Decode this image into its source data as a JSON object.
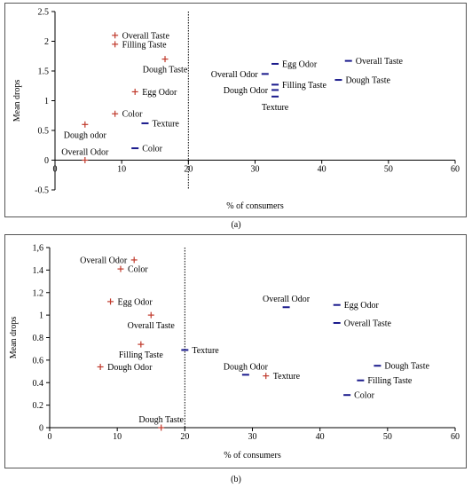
{
  "figure_labels": {
    "a": "(a)",
    "b": "(b)"
  },
  "colors": {
    "plus_marker": "#c0392b",
    "dash_marker": "#1a1a8c",
    "axis": "#000000",
    "threshold": "#000000"
  },
  "chart_data": [
    {
      "id": "a",
      "type": "scatter",
      "xlabel": "% of consumers",
      "ylabel": "Mean drops",
      "xlim": [
        0,
        60
      ],
      "ylim": [
        -0.5,
        2.5
      ],
      "xticks": [
        0,
        10,
        20,
        30,
        40,
        50,
        60
      ],
      "yticks": [
        -0.5,
        0,
        0.5,
        1,
        1.5,
        2,
        2.5
      ],
      "ytick_labels": [
        "-0.5",
        "0",
        "0.5",
        "1",
        "1.5",
        "2",
        "2.5"
      ],
      "xaxis_at_y": 0,
      "threshold_x": 20,
      "grid": false,
      "legend": "none",
      "series": [
        {
          "marker": "plus",
          "points": [
            {
              "x": 9,
              "y": 2.1,
              "label": "Overall Taste",
              "pos": "right"
            },
            {
              "x": 9,
              "y": 1.95,
              "label": "Filling Taste",
              "pos": "right"
            },
            {
              "x": 16.5,
              "y": 1.7,
              "label": "Dough Taste",
              "pos": "below"
            },
            {
              "x": 12,
              "y": 1.15,
              "label": "Egg Odor",
              "pos": "right"
            },
            {
              "x": 9,
              "y": 0.78,
              "label": "Color",
              "pos": "right"
            },
            {
              "x": 4.5,
              "y": 0.6,
              "label": "Dough odor",
              "pos": "below"
            },
            {
              "x": 4.5,
              "y": 0,
              "label": "Overall Odor",
              "pos": "above"
            }
          ]
        },
        {
          "marker": "dash",
          "points": [
            {
              "x": 13.5,
              "y": 0.62,
              "label": "Texture",
              "pos": "right"
            },
            {
              "x": 12,
              "y": 0.2,
              "label": "Color",
              "pos": "right"
            },
            {
              "x": 33,
              "y": 1.62,
              "label": "Egg Odor",
              "pos": "right"
            },
            {
              "x": 44,
              "y": 1.67,
              "label": "Overall Taste",
              "pos": "right"
            },
            {
              "x": 31.5,
              "y": 1.45,
              "label": "Overall Odor",
              "pos": "left"
            },
            {
              "x": 42.5,
              "y": 1.35,
              "label": "Dough Taste",
              "pos": "right"
            },
            {
              "x": 33,
              "y": 1.27,
              "label": "Filling Taste",
              "pos": "right"
            },
            {
              "x": 33,
              "y": 1.18,
              "label": "Dough Odor",
              "pos": "left"
            },
            {
              "x": 33,
              "y": 1.07,
              "label": "Texture",
              "pos": "below"
            }
          ]
        }
      ]
    },
    {
      "id": "b",
      "type": "scatter",
      "xlabel": "% of consumers",
      "ylabel": "Mean drops",
      "xlim": [
        0,
        60
      ],
      "ylim": [
        0,
        1.6
      ],
      "xticks": [
        0,
        10,
        20,
        30,
        40,
        50,
        60
      ],
      "yticks": [
        0,
        0.2,
        0.4,
        0.6,
        0.8,
        1,
        1.2,
        1.4,
        1.6
      ],
      "ytick_labels": [
        "0",
        "0.2",
        "0.4",
        "0.6",
        "0.8",
        "1",
        "1.2",
        "1.4",
        "1,6"
      ],
      "xaxis_at_y": 0,
      "threshold_x": 20,
      "grid": false,
      "legend": "none",
      "series": [
        {
          "marker": "plus",
          "points": [
            {
              "x": 12.5,
              "y": 1.49,
              "label": "Overall Odor",
              "pos": "left"
            },
            {
              "x": 10.5,
              "y": 1.41,
              "label": "Color",
              "pos": "right"
            },
            {
              "x": 9,
              "y": 1.12,
              "label": "Egg Odor",
              "pos": "right"
            },
            {
              "x": 15,
              "y": 1.0,
              "label": "Overall Taste",
              "pos": "below"
            },
            {
              "x": 13.5,
              "y": 0.74,
              "label": "Filling Taste",
              "pos": "below"
            },
            {
              "x": 7.5,
              "y": 0.54,
              "label": "Dough Odor",
              "pos": "right"
            },
            {
              "x": 16.5,
              "y": 0.0,
              "label": "Dough Taste",
              "pos": "above"
            },
            {
              "x": 32,
              "y": 0.46,
              "label": "Texture",
              "pos": "right"
            }
          ]
        },
        {
          "marker": "dash",
          "points": [
            {
              "x": 20,
              "y": 0.69,
              "label": "Texture",
              "pos": "right"
            },
            {
              "x": 35,
              "y": 1.07,
              "label": "Overall Odor",
              "pos": "above"
            },
            {
              "x": 42.5,
              "y": 1.09,
              "label": "Egg Odor",
              "pos": "right"
            },
            {
              "x": 42.5,
              "y": 0.93,
              "label": "Overall Taste",
              "pos": "right"
            },
            {
              "x": 48.5,
              "y": 0.55,
              "label": "Dough Taste",
              "pos": "right"
            },
            {
              "x": 29,
              "y": 0.47,
              "label": "Dough Odor",
              "pos": "above"
            },
            {
              "x": 46,
              "y": 0.42,
              "label": "Filling Taste",
              "pos": "right"
            },
            {
              "x": 44,
              "y": 0.29,
              "label": "Color",
              "pos": "right"
            }
          ]
        }
      ]
    }
  ]
}
